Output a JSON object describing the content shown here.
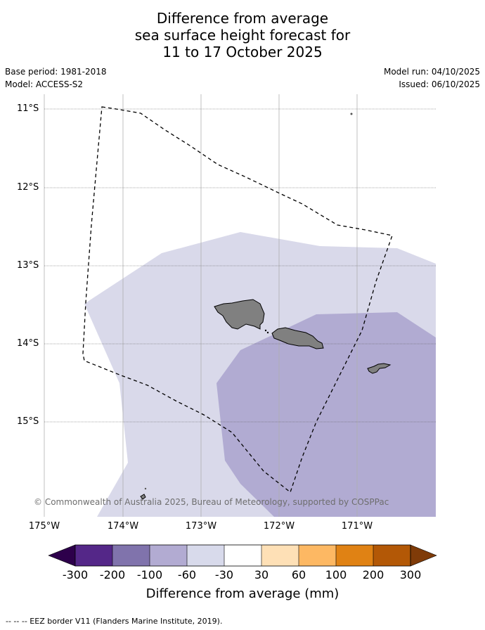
{
  "title": {
    "line1": "Difference from average",
    "line2": "sea surface height forecast for",
    "line3": "11 to 17 October 2025"
  },
  "meta": {
    "base_period": "Base period: 1981-2018",
    "model": "Model: ACCESS-S2",
    "model_run": "Model run: 04/10/2025",
    "issued": "Issued: 06/10/2025"
  },
  "map": {
    "lat_labels": [
      "11°S",
      "12°S",
      "13°S",
      "14°S",
      "15°S"
    ],
    "lon_labels": [
      "175°W",
      "174°W",
      "173°W",
      "172°W",
      "171°W"
    ],
    "extent": {
      "lon": [
        -175,
        -170
      ],
      "lat": [
        -16.2,
        -10.8
      ]
    },
    "copyright": "© Commonwealth of Australia 2025, Bureau of Meteorology, supported by COSPPac",
    "colors": {
      "ocean_light": "#d9d9ea",
      "ocean_mid": "#b1abd2",
      "land": "#808080",
      "grid": "#b0b0b0"
    }
  },
  "colorbar": {
    "ticks": [
      "-300",
      "-200",
      "-100",
      "-60",
      "-30",
      "30",
      "60",
      "100",
      "200",
      "300"
    ],
    "colors": [
      "#2d004b",
      "#542788",
      "#8073ac",
      "#b2abd2",
      "#d8daeb",
      "#ffffff",
      "#fee0b6",
      "#fdb863",
      "#e08214",
      "#b35806",
      "#7f3b08"
    ],
    "label": "Difference from average (mm)"
  },
  "footer": "--  --  -- EEZ border V11 (Flanders Marine Institute, 2019)."
}
